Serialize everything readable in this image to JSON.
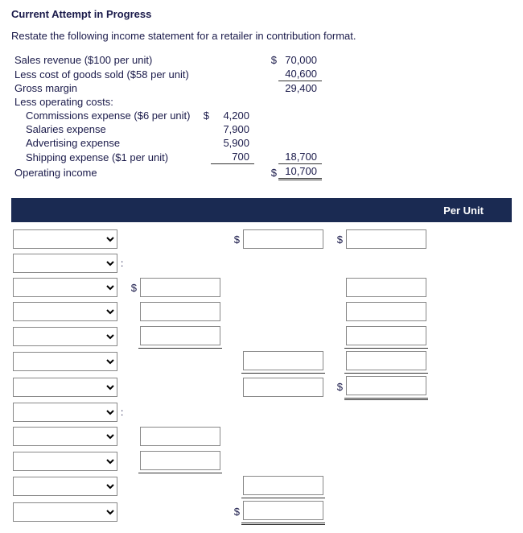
{
  "header": {
    "title": "Current Attempt in Progress",
    "instruction": "Restate the following income statement for a retailer in contribution format."
  },
  "statement": {
    "rows": [
      {
        "label": "Sales revenue ($100 per unit)",
        "d1": "",
        "c1": "",
        "d2": "$",
        "c2": "70,000",
        "indent": false
      },
      {
        "label": "Less cost of goods sold ($58 per unit)",
        "d1": "",
        "c1": "",
        "d2": "",
        "c2": "40,600",
        "indent": false,
        "u2": true
      },
      {
        "label": "Gross margin",
        "d1": "",
        "c1": "",
        "d2": "",
        "c2": "29,400",
        "indent": false
      },
      {
        "label": "Less operating costs:",
        "d1": "",
        "c1": "",
        "d2": "",
        "c2": "",
        "indent": false
      },
      {
        "label": "Commissions expense ($6 per unit)",
        "d1": "$",
        "c1": "4,200",
        "d2": "",
        "c2": "",
        "indent": true
      },
      {
        "label": "Salaries expense",
        "d1": "",
        "c1": "7,900",
        "d2": "",
        "c2": "",
        "indent": true
      },
      {
        "label": "Advertising expense",
        "d1": "",
        "c1": "5,900",
        "d2": "",
        "c2": "",
        "indent": true
      },
      {
        "label": "Shipping expense ($1 per unit)",
        "d1": "",
        "c1": "700",
        "d2": "",
        "c2": "18,700",
        "indent": true,
        "u1": true,
        "u2": true
      },
      {
        "label": "Operating income",
        "d1": "",
        "c1": "",
        "d2": "$",
        "c2": "10,700",
        "indent": false,
        "dbl2": true
      }
    ]
  },
  "form": {
    "per_unit_header": "Per Unit",
    "rows": [
      {
        "dd": true,
        "col": "",
        "a": false,
        "aLbl": "",
        "b": true,
        "bLbl": "$",
        "c": true,
        "cLbl": "$"
      },
      {
        "dd": true,
        "col": ":",
        "a": false,
        "aLbl": "",
        "b": false,
        "bLbl": "",
        "c": false,
        "cLbl": ""
      },
      {
        "dd": true,
        "col": "",
        "a": true,
        "aLbl": "$",
        "b": false,
        "bLbl": "",
        "c": true,
        "cLbl": ""
      },
      {
        "dd": true,
        "col": "",
        "a": true,
        "aLbl": "",
        "b": false,
        "bLbl": "",
        "c": true,
        "cLbl": ""
      },
      {
        "dd": true,
        "col": "",
        "a": true,
        "aLbl": "",
        "aU": true,
        "b": false,
        "bLbl": "",
        "c": true,
        "cLbl": "",
        "cU": true
      },
      {
        "dd": true,
        "col": "",
        "a": false,
        "aLbl": "",
        "b": true,
        "bLbl": "",
        "bU": true,
        "c": true,
        "cLbl": "",
        "cU": true
      },
      {
        "dd": true,
        "col": "",
        "a": false,
        "aLbl": "",
        "b": true,
        "bLbl": "",
        "c": true,
        "cLbl": "$",
        "cDbl": true
      },
      {
        "dd": true,
        "col": ":",
        "a": false,
        "aLbl": "",
        "b": false,
        "bLbl": "",
        "c": false,
        "cLbl": ""
      },
      {
        "dd": true,
        "col": "",
        "a": true,
        "aLbl": "",
        "b": false,
        "bLbl": "",
        "c": false,
        "cLbl": ""
      },
      {
        "dd": true,
        "col": "",
        "a": true,
        "aLbl": "",
        "aU": true,
        "b": false,
        "bLbl": "",
        "c": false,
        "cLbl": ""
      },
      {
        "dd": true,
        "col": "",
        "a": false,
        "aLbl": "",
        "b": true,
        "bLbl": "",
        "bU": true,
        "c": false,
        "cLbl": ""
      },
      {
        "dd": true,
        "col": "",
        "a": false,
        "aLbl": "",
        "b": true,
        "bLbl": "$",
        "bDbl": true,
        "c": false,
        "cLbl": ""
      }
    ]
  }
}
